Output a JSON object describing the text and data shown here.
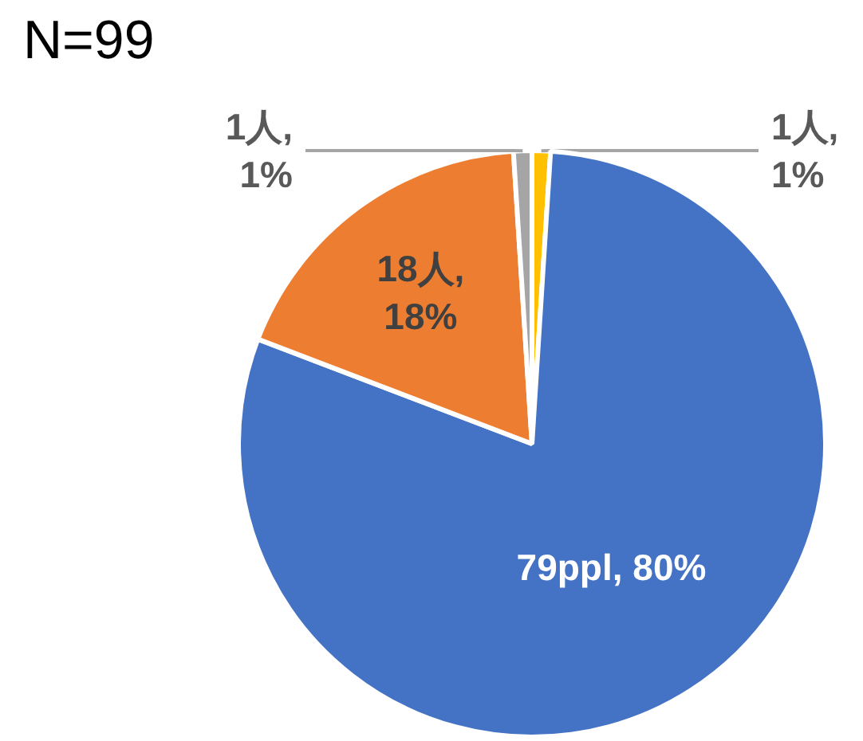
{
  "chart_data": {
    "type": "pie",
    "title": "N=99",
    "categories": [
      null,
      null,
      null,
      null
    ],
    "values": [
      1,
      79,
      18,
      1
    ],
    "colors": [
      "#ffc000",
      "#4472c4",
      "#ed7d31",
      "#a5a5a5"
    ],
    "value_labels": [
      "1人, 1%",
      "79ppl, 80%",
      "18人, 18%",
      "1人, 1%"
    ]
  }
}
